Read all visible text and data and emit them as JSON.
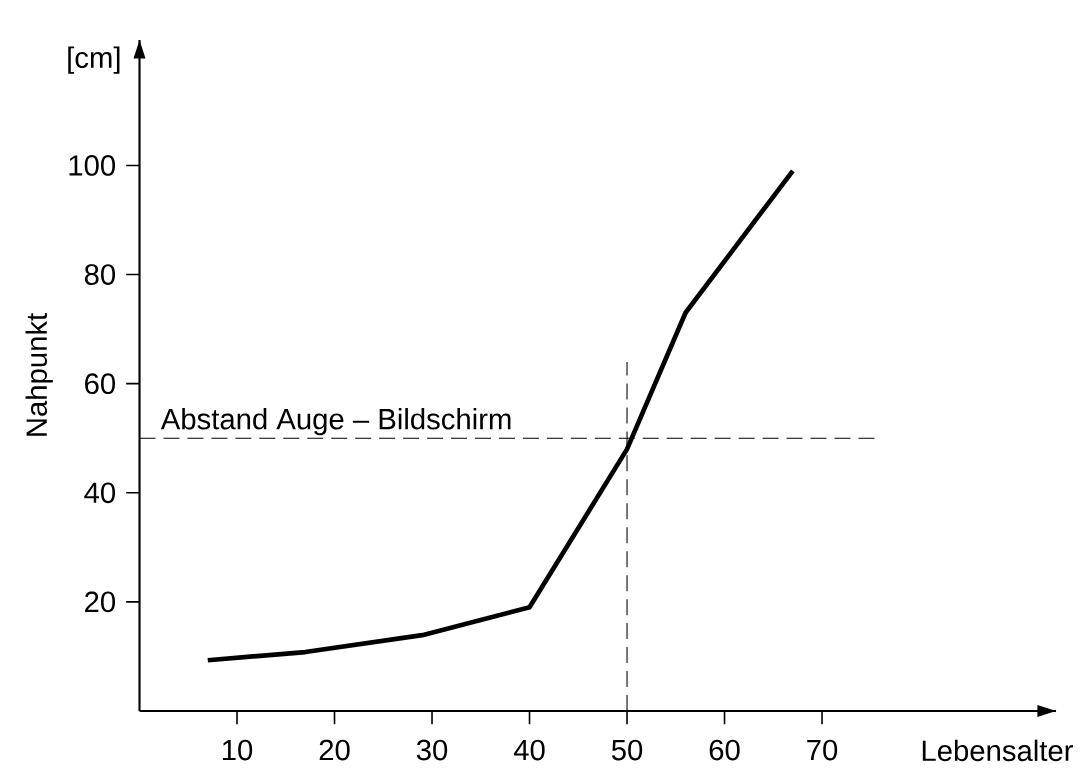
{
  "chart_data": {
    "type": "line",
    "xlabel": "Lebensalter",
    "ylabel": "Nahpunkt",
    "annotations": [
      "[cm]"
    ],
    "x": [
      7,
      17,
      29,
      40,
      50,
      56,
      67
    ],
    "series": [
      {
        "color": "#000000",
        "values": [
          9.3,
          10.8,
          13.9,
          19,
          48,
          73,
          99
        ]
      }
    ],
    "xlim": [
      0,
      94
    ],
    "ylim": [
      0,
      123
    ],
    "xticks": [
      10,
      20,
      30,
      40,
      50,
      60,
      70
    ],
    "yticks": [
      20,
      40,
      60,
      80,
      100
    ],
    "ref_lines": [
      {
        "axis": "y",
        "value": 50,
        "label": "Abstand Auge – Bildschirm",
        "color": "#000000",
        "line_style": "dashed"
      },
      {
        "axis": "x",
        "value": 50,
        "color": "#000000",
        "line_style": "dashed"
      }
    ],
    "grid": false,
    "legend": false,
    "marker": "none",
    "line_style": "solid"
  }
}
